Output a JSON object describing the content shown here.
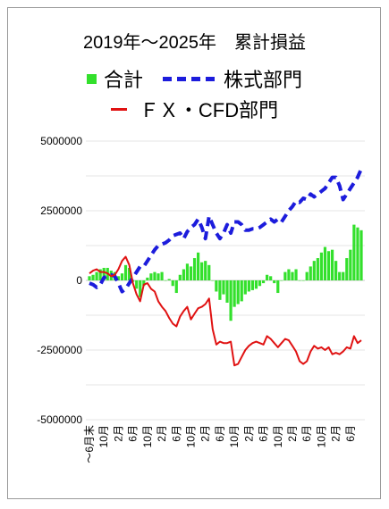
{
  "chart_data": {
    "type": "bar",
    "title": "2019年～2025年　累計損益",
    "ylim": [
      -5000000,
      5000000
    ],
    "y_ticks": [
      "5000000",
      "2500000",
      "0",
      "-2500000",
      "-5000000"
    ],
    "grid": true,
    "legend_position": "top",
    "x": [
      "2019-06",
      "2019-07",
      "2019-08",
      "2019-09",
      "2019-10",
      "2019-11",
      "2019-12",
      "2020-01",
      "2020-02",
      "2020-03",
      "2020-04",
      "2020-05",
      "2020-06",
      "2020-07",
      "2020-08",
      "2020-09",
      "2020-10",
      "2020-11",
      "2020-12",
      "2021-01",
      "2021-02",
      "2021-03",
      "2021-04",
      "2021-05",
      "2021-06",
      "2021-07",
      "2021-08",
      "2021-09",
      "2021-10",
      "2021-11",
      "2021-12",
      "2022-01",
      "2022-02",
      "2022-03",
      "2022-04",
      "2022-05",
      "2022-06",
      "2022-07",
      "2022-08",
      "2022-09",
      "2022-10",
      "2022-11",
      "2022-12",
      "2023-01",
      "2023-02",
      "2023-03",
      "2023-04",
      "2023-05",
      "2023-06",
      "2023-07",
      "2023-08",
      "2023-09",
      "2023-10",
      "2023-11",
      "2023-12",
      "2024-01",
      "2024-02",
      "2024-03",
      "2024-04",
      "2024-05",
      "2024-06",
      "2024-07",
      "2024-08",
      "2024-09",
      "2024-10",
      "2024-11",
      "2024-12",
      "2025-01",
      "2025-02",
      "2025-03",
      "2025-04",
      "2025-05",
      "2025-06",
      "2025-07",
      "2025-08",
      "2025-09"
    ],
    "x_ticks": [
      {
        "x": "2019-06",
        "label": "～6月末"
      },
      {
        "x": "2019-10",
        "label": "10月"
      },
      {
        "x": "2020-02",
        "label": "2月"
      },
      {
        "x": "2020-06",
        "label": "6月"
      },
      {
        "x": "2020-10",
        "label": "10月"
      },
      {
        "x": "2021-02",
        "label": "2月"
      },
      {
        "x": "2021-06",
        "label": "6月"
      },
      {
        "x": "2021-10",
        "label": "10月"
      },
      {
        "x": "2022-02",
        "label": "2月"
      },
      {
        "x": "2022-06",
        "label": "6月"
      },
      {
        "x": "2022-10",
        "label": "10月"
      },
      {
        "x": "2023-02",
        "label": "2月"
      },
      {
        "x": "2023-06",
        "label": "6月"
      },
      {
        "x": "2023-10",
        "label": "10月"
      },
      {
        "x": "2024-02",
        "label": "2月"
      },
      {
        "x": "2024-06",
        "label": "6月"
      },
      {
        "x": "2024-10",
        "label": "10月"
      },
      {
        "x": "2025-02",
        "label": "2月"
      },
      {
        "x": "2025-06",
        "label": "6月"
      }
    ],
    "series": [
      {
        "name": "合計",
        "render": "bar",
        "color": "#33e02c",
        "values": [
          150000,
          200000,
          300000,
          400000,
          450000,
          450000,
          350000,
          300000,
          150000,
          250000,
          550000,
          450000,
          -50000,
          -300000,
          -600000,
          -200000,
          100000,
          250000,
          300000,
          250000,
          300000,
          0,
          50000,
          -200000,
          -450000,
          200000,
          400000,
          600000,
          500000,
          800000,
          1000000,
          650000,
          700000,
          550000,
          0,
          -400000,
          -700000,
          -500000,
          -800000,
          -1450000,
          -950000,
          -850000,
          -750000,
          -500000,
          -400000,
          -350000,
          -300000,
          -200000,
          -100000,
          200000,
          150000,
          -100000,
          -450000,
          0,
          300000,
          400000,
          300000,
          400000,
          0,
          0,
          300000,
          500000,
          700000,
          800000,
          1000000,
          1200000,
          1050000,
          1100000,
          700000,
          300000,
          300000,
          800000,
          1100000,
          2000000,
          1900000,
          1800000
        ]
      },
      {
        "name": "株式部門",
        "render": "dashed-line",
        "color": "#1c1cdc",
        "values": [
          -100000,
          -150000,
          -250000,
          -150000,
          100000,
          150000,
          200000,
          150000,
          -100000,
          -400000,
          -300000,
          -100000,
          100000,
          300000,
          500000,
          500000,
          700000,
          900000,
          1100000,
          1250000,
          1300000,
          1350000,
          1450000,
          1600000,
          1650000,
          1700000,
          1500000,
          1750000,
          1900000,
          2000000,
          2200000,
          1900000,
          1500000,
          2300000,
          2000000,
          1700000,
          1500000,
          1700000,
          2000000,
          1700000,
          2100000,
          2100000,
          2000000,
          1800000,
          1800000,
          1850000,
          1850000,
          1900000,
          2000000,
          2100000,
          2200000,
          2100000,
          2200000,
          2100000,
          2300000,
          2500000,
          2650000,
          2850000,
          2800000,
          2950000,
          2900000,
          3100000,
          3000000,
          3100000,
          3200000,
          3300000,
          3500000,
          3700000,
          3700000,
          3400000,
          2900000,
          3100000,
          3300000,
          3500000,
          3700000,
          4000000
        ]
      },
      {
        "name": "ＦＸ・CFD部門",
        "render": "line",
        "color": "#e01212",
        "values": [
          250000,
          350000,
          400000,
          300000,
          300000,
          250000,
          150000,
          200000,
          400000,
          700000,
          850000,
          550000,
          -100000,
          -500000,
          -750000,
          -150000,
          -100000,
          -300000,
          -400000,
          -750000,
          -950000,
          -1100000,
          -1350000,
          -1550000,
          -1650000,
          -1300000,
          -1100000,
          -950000,
          -1400000,
          -1200000,
          -1000000,
          -950000,
          -850000,
          -650000,
          -1750000,
          -2300000,
          -2200000,
          -2250000,
          -2250000,
          -2200000,
          -3050000,
          -3000000,
          -2750000,
          -2500000,
          -2350000,
          -2250000,
          -2200000,
          -2250000,
          -2300000,
          -2000000,
          -2100000,
          -2250000,
          -2400000,
          -2250000,
          -2100000,
          -2150000,
          -2350000,
          -2550000,
          -2900000,
          -3000000,
          -2900000,
          -2550000,
          -2350000,
          -2450000,
          -2400000,
          -2500000,
          -2400000,
          -2650000,
          -2600000,
          -2650000,
          -2550000,
          -2400000,
          -2450000,
          -2000000,
          -2250000,
          -2150000
        ]
      }
    ]
  }
}
